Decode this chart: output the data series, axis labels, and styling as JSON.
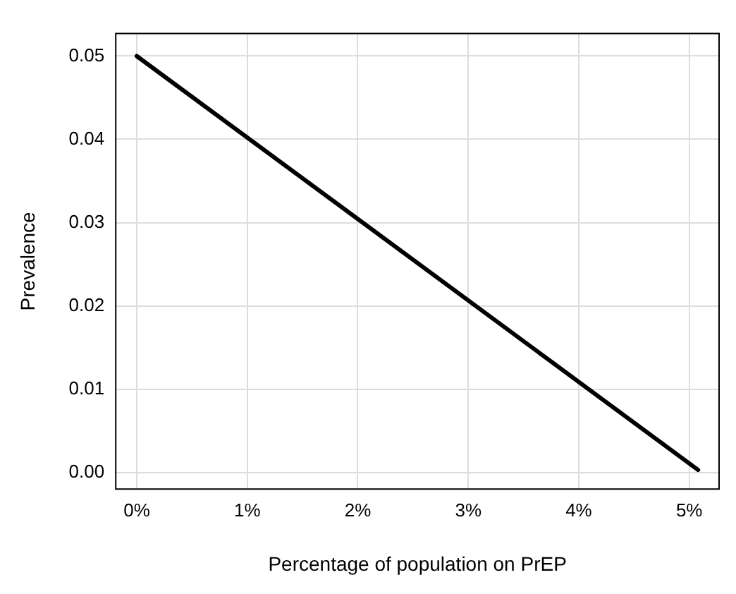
{
  "chart_data": {
    "type": "line",
    "xlabel": "Percentage of population on PrEP",
    "ylabel": "Prevalence",
    "series": [
      {
        "color": "#000000",
        "x": [
          0,
          5.08
        ],
        "values": [
          0.05,
          0.0003
        ]
      }
    ],
    "xlim": [
      -0.19,
      5.27
    ],
    "ylim": [
      -0.002,
      0.0527
    ],
    "xticks": [
      {
        "value": 0,
        "label": "0%"
      },
      {
        "value": 1,
        "label": "1%"
      },
      {
        "value": 2,
        "label": "2%"
      },
      {
        "value": 3,
        "label": "3%"
      },
      {
        "value": 4,
        "label": "4%"
      },
      {
        "value": 5,
        "label": "5%"
      }
    ],
    "yticks": [
      {
        "value": 0,
        "label": "0.00"
      },
      {
        "value": 0.01,
        "label": "0.01"
      },
      {
        "value": 0.02,
        "label": "0.02"
      },
      {
        "value": 0.03,
        "label": "0.03"
      },
      {
        "value": 0.04,
        "label": "0.04"
      },
      {
        "value": 0.05,
        "label": "0.05"
      }
    ],
    "grid": true,
    "legend": false,
    "marker": "none",
    "line_style": "solid"
  }
}
